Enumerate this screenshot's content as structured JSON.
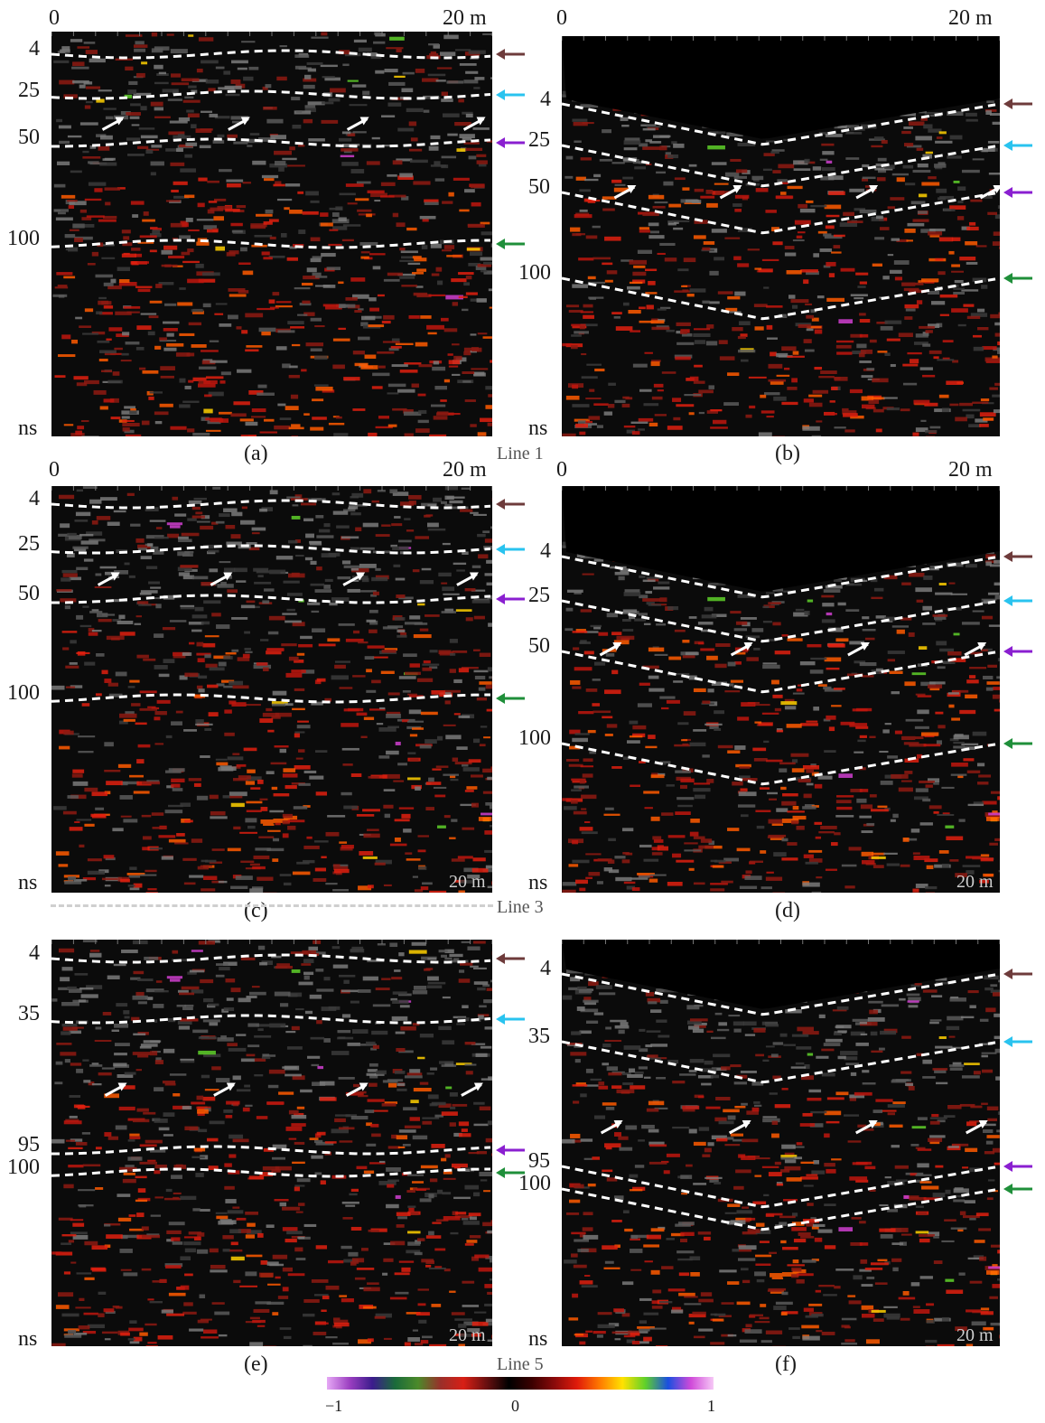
{
  "panels": [
    {
      "id": "a",
      "caption": "(a)",
      "x_start": "0",
      "x_end": "20  m",
      "y_labels": [
        "4",
        "25",
        "50",
        "100",
        "ns"
      ],
      "y_pos": [
        52,
        97,
        150,
        262,
        470
      ],
      "shape": "flat",
      "bottom_label": ""
    },
    {
      "id": "b",
      "caption": "(b)",
      "x_start": "0",
      "x_end": "20  m",
      "y_labels": [
        "4",
        "25",
        "50",
        "100",
        "ns"
      ],
      "y_pos": [
        107,
        153,
        205,
        300,
        470
      ],
      "shape": "v",
      "bottom_label": ""
    },
    {
      "id": "c",
      "caption": "(c)",
      "x_start": "0",
      "x_end": "20  m",
      "y_labels": [
        "4",
        "25",
        "50",
        "100",
        "ns"
      ],
      "y_pos": [
        550,
        600,
        655,
        765,
        975
      ],
      "shape": "flat",
      "bottom_label": "20 m"
    },
    {
      "id": "d",
      "caption": "(d)",
      "x_start": "0",
      "x_end": "20  m",
      "y_labels": [
        "4",
        "25",
        "50",
        "100",
        "ns"
      ],
      "y_pos": [
        608,
        657,
        713,
        815,
        975
      ],
      "shape": "v",
      "bottom_label": "20 m"
    },
    {
      "id": "e",
      "caption": "(e)",
      "x_start": "",
      "x_end": "",
      "y_labels": [
        "4",
        "35",
        "95",
        "100",
        "ns"
      ],
      "y_pos": [
        1053,
        1120,
        1265,
        1290,
        1480
      ],
      "shape": "flat",
      "bottom_label": "20 m"
    },
    {
      "id": "f",
      "caption": "(f)",
      "x_start": "",
      "x_end": "",
      "y_labels": [
        "4",
        "35",
        "95",
        "100",
        "ns"
      ],
      "y_pos": [
        1070,
        1145,
        1283,
        1308,
        1480
      ],
      "shape": "v",
      "bottom_label": "20 m"
    }
  ],
  "line_labels": [
    "Line 1",
    "Line 3",
    "Line 5"
  ],
  "colorbar": {
    "min_label": "−1",
    "mid_label": "0",
    "max_label": "1"
  },
  "arrow_colors": {
    "brown": "#6e3b3b",
    "cyan": "#29c3ef",
    "purple": "#8a1fd0",
    "green": "#1f8f3a"
  }
}
